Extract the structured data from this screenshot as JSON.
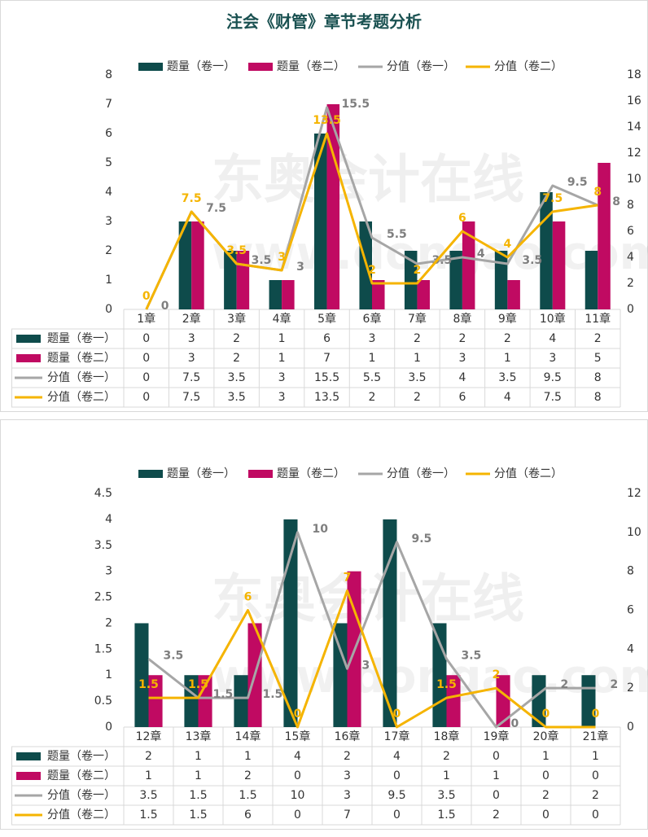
{
  "title": "注会《财管》章节考题分析",
  "watermark": [
    "东奥会计在线",
    "www.dongao.com"
  ],
  "chart_data": [
    {
      "type": "combo",
      "categories": [
        "1章",
        "2章",
        "3章",
        "4章",
        "5章",
        "6章",
        "7章",
        "8章",
        "9章",
        "10章",
        "11章"
      ],
      "series": [
        {
          "name": "题量（卷一）",
          "type": "bar",
          "color": "#0e4b4b",
          "values": [
            0,
            3,
            2,
            1,
            6,
            3,
            2,
            2,
            2,
            4,
            2
          ]
        },
        {
          "name": "题量（卷二）",
          "type": "bar",
          "color": "#c00a62",
          "values": [
            0,
            3,
            2,
            1,
            7,
            1,
            1,
            3,
            1,
            3,
            5
          ]
        },
        {
          "name": "分值（卷一）",
          "type": "line",
          "axis": "y2",
          "color": "#a6a6a6",
          "values": [
            0,
            7.5,
            3.5,
            3,
            15.5,
            5.5,
            3.5,
            4,
            3.5,
            9.5,
            8
          ]
        },
        {
          "name": "分值（卷二）",
          "type": "line",
          "axis": "y2",
          "color": "#f5b400",
          "values": [
            0,
            7.5,
            3.5,
            3,
            13.5,
            2,
            2,
            6,
            4,
            7.5,
            8
          ]
        }
      ],
      "ylim": [
        0,
        8
      ],
      "yticks": [
        0,
        1,
        2,
        3,
        4,
        5,
        6,
        7,
        8
      ],
      "y2lim": [
        0,
        18
      ],
      "y2ticks": [
        0,
        2,
        4,
        6,
        8,
        10,
        12,
        14,
        16,
        18
      ],
      "legend": "top",
      "data_table": true
    },
    {
      "type": "combo",
      "categories": [
        "12章",
        "13章",
        "14章",
        "15章",
        "16章",
        "17章",
        "18章",
        "19章",
        "20章",
        "21章"
      ],
      "series": [
        {
          "name": "题量（卷一）",
          "type": "bar",
          "color": "#0e4b4b",
          "values": [
            2,
            1,
            1,
            4,
            2,
            4,
            2,
            0,
            1,
            1
          ]
        },
        {
          "name": "题量（卷二）",
          "type": "bar",
          "color": "#c00a62",
          "values": [
            1,
            1,
            2,
            0,
            3,
            0,
            1,
            1,
            0,
            0
          ]
        },
        {
          "name": "分值（卷一）",
          "type": "line",
          "axis": "y2",
          "color": "#a6a6a6",
          "values": [
            3.5,
            1.5,
            1.5,
            10,
            3,
            9.5,
            3.5,
            0,
            2,
            2
          ]
        },
        {
          "name": "分值（卷二）",
          "type": "line",
          "axis": "y2",
          "color": "#f5b400",
          "values": [
            1.5,
            1.5,
            6,
            0,
            7,
            0,
            1.5,
            2,
            0,
            0
          ]
        }
      ],
      "ylim": [
        0,
        4.5
      ],
      "yticks": [
        0,
        0.5,
        1,
        1.5,
        2,
        2.5,
        3,
        3.5,
        4,
        4.5
      ],
      "y2lim": [
        0,
        12
      ],
      "y2ticks": [
        0,
        2,
        4,
        6,
        8,
        10,
        12
      ],
      "legend": "top",
      "data_table": true
    }
  ]
}
